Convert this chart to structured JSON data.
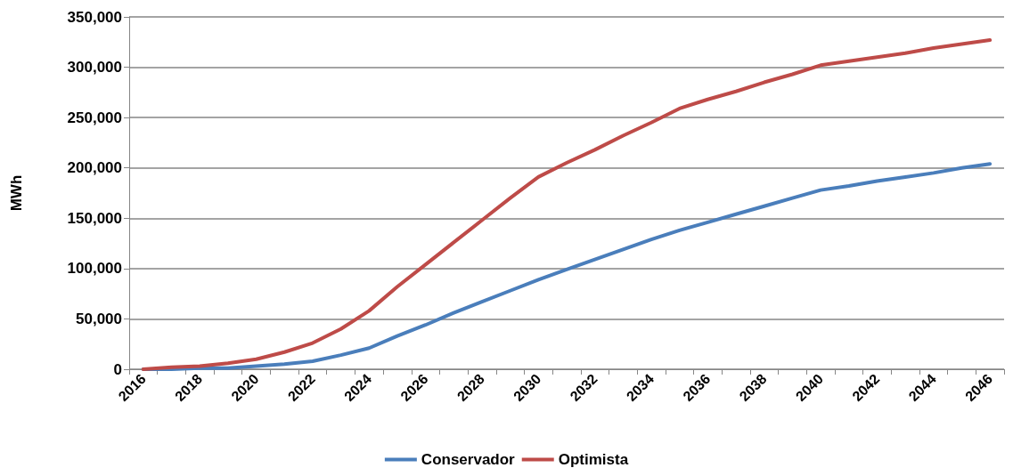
{
  "chart_data": {
    "type": "line",
    "ylabel": "MWh",
    "categories": [
      "2016",
      null,
      "2018",
      null,
      "2020",
      null,
      "2022",
      null,
      "2024",
      null,
      "2026",
      null,
      "2028",
      null,
      "2030",
      null,
      "2032",
      null,
      "2034",
      null,
      "2036",
      null,
      "2038",
      null,
      "2040",
      null,
      "2042",
      null,
      "2044",
      null,
      "2046"
    ],
    "series": [
      {
        "name": "Conservador",
        "color": "#4a7ebb",
        "values": [
          0,
          0,
          1000,
          1000,
          3000,
          5000,
          8000,
          14000,
          21000,
          33000,
          44000,
          56000,
          67000,
          78000,
          89000,
          99000,
          109000,
          119000,
          129000,
          138000,
          146000,
          154000,
          162000,
          170000,
          178000,
          182000,
          187000,
          191000,
          195000,
          200000,
          204000
        ]
      },
      {
        "name": "Optimista",
        "color": "#be4b48",
        "values": [
          0,
          2000,
          3000,
          6000,
          10000,
          17000,
          26000,
          40000,
          58000,
          82000,
          104000,
          126000,
          148000,
          170000,
          191000,
          205000,
          218000,
          232000,
          245000,
          259000,
          268000,
          276000,
          285000,
          293000,
          302000,
          306000,
          310000,
          314000,
          319000,
          323000,
          327000
        ]
      }
    ],
    "ylim": [
      0,
      350000
    ],
    "yticks": [
      0,
      {
        "value": 50000,
        "label": "50,000"
      },
      {
        "value": 100000,
        "label": "100,000"
      },
      {
        "value": 150000,
        "label": "150,000"
      },
      {
        "value": 200000,
        "label": "200,000"
      },
      {
        "value": 250000,
        "label": "250,000"
      },
      {
        "value": 300000,
        "label": "300,000"
      },
      {
        "value": 350000,
        "label": "350,000"
      }
    ],
    "grid": "y",
    "legend": "bottom",
    "marker": "none",
    "line_style": "solid"
  }
}
